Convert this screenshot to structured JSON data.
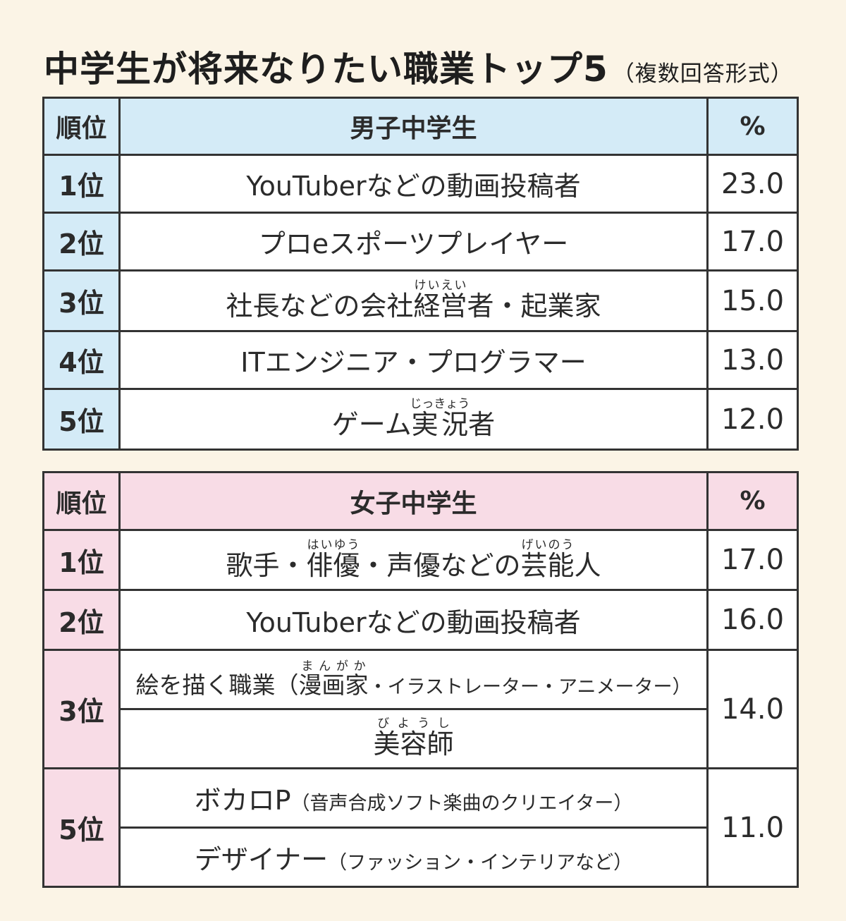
{
  "title": "中学生が将来なりたい職業トップ5",
  "title_note": "（複数回答形式）",
  "colors": {
    "background": "#fbf4e6",
    "boys_header": "#d4ebf7",
    "girls_header": "#f8dce6",
    "border": "#333333"
  },
  "boys": {
    "header": {
      "rank": "順位",
      "group": "男子中学生",
      "pct": "%"
    },
    "rows": [
      {
        "rank": "1位",
        "job": "YouTuberなどの動画投稿者",
        "pct": "23.0"
      },
      {
        "rank": "2位",
        "job": "プロeスポーツプレイヤー",
        "pct": "17.0"
      },
      {
        "rank": "3位",
        "job_pre": "社長などの会社",
        "job_ruby_base": "経営",
        "job_ruby_text": "けいえい",
        "job_post": "者・起業家",
        "pct": "15.0"
      },
      {
        "rank": "4位",
        "job": "ITエンジニア・プログラマー",
        "pct": "13.0"
      },
      {
        "rank": "5位",
        "job_pre": "ゲーム",
        "job_ruby_base": "実況",
        "job_ruby_text": "じっきょう",
        "job_post": "者",
        "pct": "12.0"
      }
    ]
  },
  "girls": {
    "header": {
      "rank": "順位",
      "group": "女子中学生",
      "pct": "%"
    },
    "rows": [
      {
        "rank": "1位",
        "job_a": "歌手・",
        "ruby1_base": "俳優",
        "ruby1_text": "はいゆう",
        "job_b": "・声優などの",
        "ruby2_base": "芸能",
        "ruby2_text": "げいのう",
        "job_c": "人",
        "pct": "17.0"
      },
      {
        "rank": "2位",
        "job": "YouTuberなどの動画投稿者",
        "pct": "16.0"
      },
      {
        "rank": "3位",
        "pct": "14.0",
        "jobs": [
          {
            "pre": "絵を描く職業（",
            "ruby_base": "漫画家",
            "ruby_text": "まんがか",
            "post": "・イラストレーター・アニメーター）"
          },
          {
            "ruby_base": "美容師",
            "ruby_text": "びようし"
          }
        ]
      },
      {
        "rank": "5位",
        "pct": "11.0",
        "jobs": [
          {
            "main": "ボカロP",
            "note": "（音声合成ソフト楽曲のクリエイター）"
          },
          {
            "main": "デザイナー",
            "note": "（ファッション・インテリアなど）"
          }
        ]
      }
    ]
  }
}
